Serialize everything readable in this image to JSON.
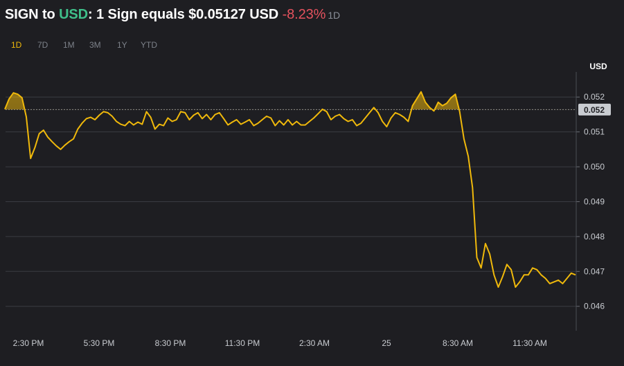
{
  "header": {
    "base": "SIGN",
    "to": " to ",
    "quote": "USD",
    "sentence": ": 1 Sign equals $0.05127 USD ",
    "change": "-8.23%",
    "period": "1D"
  },
  "ranges": [
    "1D",
    "7D",
    "1M",
    "3M",
    "1Y",
    "YTD"
  ],
  "active_range": "1D",
  "colors": {
    "background": "#1e1e22",
    "line": "#f0b90b",
    "positive": "#3fbf8a",
    "negative": "#e5525e",
    "grid": "#3a3c42",
    "axis_text": "#c9ccd1"
  },
  "chart_data": {
    "type": "line",
    "ylabel": "USD",
    "ylim": [
      0.0454,
      0.0527
    ],
    "y_ticks": [
      {
        "value": 0.0521,
        "label": "0.052"
      },
      {
        "value": 0.0511,
        "label": "0.051"
      },
      {
        "value": 0.0501,
        "label": "0.050"
      },
      {
        "value": 0.0491,
        "label": "0.049"
      },
      {
        "value": 0.0481,
        "label": "0.048"
      },
      {
        "value": 0.0471,
        "label": "0.047"
      },
      {
        "value": 0.0461,
        "label": "0.046"
      }
    ],
    "reference": {
      "value": 0.05174,
      "label": "0.052"
    },
    "x_ticks": [
      "2:30 PM",
      "5:30 PM",
      "8:30 PM",
      "11:30 PM",
      "2:30 AM",
      "25",
      "8:30 AM",
      "11:30 AM"
    ],
    "grid": true,
    "series": [
      {
        "values": [
          0.05175,
          0.05205,
          0.05222,
          0.05218,
          0.05208,
          0.05153,
          0.05034,
          0.05065,
          0.05105,
          0.05115,
          0.05095,
          0.05082,
          0.0507,
          0.0506,
          0.05072,
          0.05082,
          0.0509,
          0.05118,
          0.05135,
          0.05148,
          0.05152,
          0.05145,
          0.05158,
          0.05168,
          0.05165,
          0.05155,
          0.0514,
          0.05132,
          0.05128,
          0.0514,
          0.0513,
          0.05138,
          0.05132,
          0.05168,
          0.05152,
          0.05118,
          0.05132,
          0.05128,
          0.0515,
          0.0514,
          0.05145,
          0.05168,
          0.05165,
          0.05145,
          0.05158,
          0.05165,
          0.05148,
          0.0516,
          0.05145,
          0.0516,
          0.05165,
          0.05148,
          0.0513,
          0.05138,
          0.05145,
          0.05132,
          0.05138,
          0.05145,
          0.05128,
          0.05135,
          0.05145,
          0.05155,
          0.0515,
          0.05128,
          0.05142,
          0.0513,
          0.05145,
          0.0513,
          0.0514,
          0.0513,
          0.0513,
          0.0514,
          0.0515,
          0.05162,
          0.05175,
          0.05168,
          0.05145,
          0.05155,
          0.0516,
          0.05148,
          0.0514,
          0.05145,
          0.05128,
          0.05135,
          0.0515,
          0.05165,
          0.0518,
          0.05165,
          0.0514,
          0.05125,
          0.0515,
          0.05165,
          0.0516,
          0.05152,
          0.0514,
          0.05185,
          0.05205,
          0.05225,
          0.05195,
          0.0518,
          0.0517,
          0.05195,
          0.05185,
          0.05192,
          0.05208,
          0.05218,
          0.05168,
          0.0509,
          0.0504,
          0.0495,
          0.0475,
          0.0472,
          0.0479,
          0.0476,
          0.047,
          0.04665,
          0.04695,
          0.0473,
          0.04715,
          0.04665,
          0.0468,
          0.047,
          0.047,
          0.0472,
          0.04715,
          0.047,
          0.0469,
          0.04675,
          0.0468,
          0.04685,
          0.04675,
          0.0469,
          0.04705,
          0.047
        ]
      }
    ]
  }
}
